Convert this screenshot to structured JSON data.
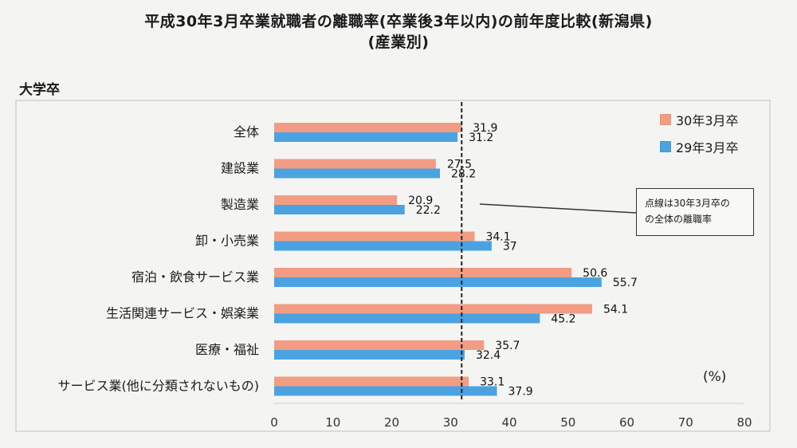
{
  "header": {
    "title_line1": "平成30年3月卒業就職者の離職率(卒業後3年以内)の前年度比較(新潟県)",
    "title_line2": "(産業別)",
    "section_label": "大学卒"
  },
  "callout_text": [
    "点線は30年3月卒の",
    "の全体の離職率"
  ],
  "unit_label": "(%)",
  "colors": {
    "series_30": "#f29c84",
    "series_29": "#4aa3e0",
    "dashed_line": "#222222",
    "frame": "#bfbfbf"
  },
  "chart_data": {
    "type": "bar",
    "orientation": "horizontal",
    "title": "平成30年3月卒業就職者の離職率(卒業後3年以内)の前年度比較(新潟県)",
    "subtitle": "(産業別)",
    "xlim": [
      0,
      80
    ],
    "x_ticks": [
      0,
      10,
      20,
      30,
      40,
      50,
      60,
      70,
      80
    ],
    "unit": "(%)",
    "legend_position": "top-right",
    "grid": false,
    "categories": [
      "全体",
      "建設業",
      "製造業",
      "卸・小売業",
      "宿泊・飲食サービス業",
      "生活関連サービス・娯楽業",
      "医療・福祉",
      "サービス業(他に分類されないもの)"
    ],
    "series": [
      {
        "name": "30年3月卒",
        "values": [
          31.9,
          27.5,
          20.9,
          34.1,
          50.6,
          54.1,
          35.7,
          33.1
        ],
        "labels": [
          "31.9",
          "27.5",
          "20.9",
          "34.1",
          "50.6",
          "54.1",
          "35.7",
          "33.1"
        ]
      },
      {
        "name": "29年3月卒",
        "values": [
          31.2,
          28.2,
          22.2,
          37,
          55.7,
          45.2,
          32.4,
          37.9
        ],
        "labels": [
          "31.2",
          "28.2",
          "22.2",
          "37",
          "55.7",
          "45.2",
          "32.4",
          "37.9"
        ]
      }
    ],
    "reference_line": {
      "value": 31.9,
      "style": "dashed"
    }
  }
}
